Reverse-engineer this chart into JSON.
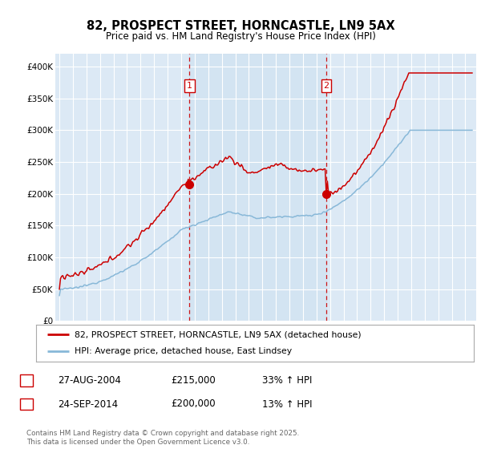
{
  "title_line1": "82, PROSPECT STREET, HORNCASTLE, LN9 5AX",
  "title_line2": "Price paid vs. HM Land Registry's House Price Index (HPI)",
  "ylim": [
    0,
    420000
  ],
  "yticks": [
    0,
    50000,
    100000,
    150000,
    200000,
    250000,
    300000,
    350000,
    400000
  ],
  "ytick_labels": [
    "£0",
    "£50K",
    "£100K",
    "£150K",
    "£200K",
    "£250K",
    "£300K",
    "£350K",
    "£400K"
  ],
  "bg_color": "#dce9f5",
  "bg_color_between": "#cce0f0",
  "line1_color": "#cc0000",
  "line2_color": "#88b8d8",
  "vline_color": "#cc0000",
  "legend1_label": "82, PROSPECT STREET, HORNCASTLE, LN9 5AX (detached house)",
  "legend2_label": "HPI: Average price, detached house, East Lindsey",
  "sale1_year": 2004.65,
  "sale1_value": 215000,
  "sale2_year": 2014.73,
  "sale2_value": 200000,
  "table_row1": [
    "1",
    "27-AUG-2004",
    "£215,000",
    "33% ↑ HPI"
  ],
  "table_row2": [
    "2",
    "24-SEP-2014",
    "£200,000",
    "13% ↑ HPI"
  ],
  "footnote": "Contains HM Land Registry data © Crown copyright and database right 2025.\nThis data is licensed under the Open Government Licence v3.0.",
  "xstart": 1995.0,
  "xend": 2025.5
}
